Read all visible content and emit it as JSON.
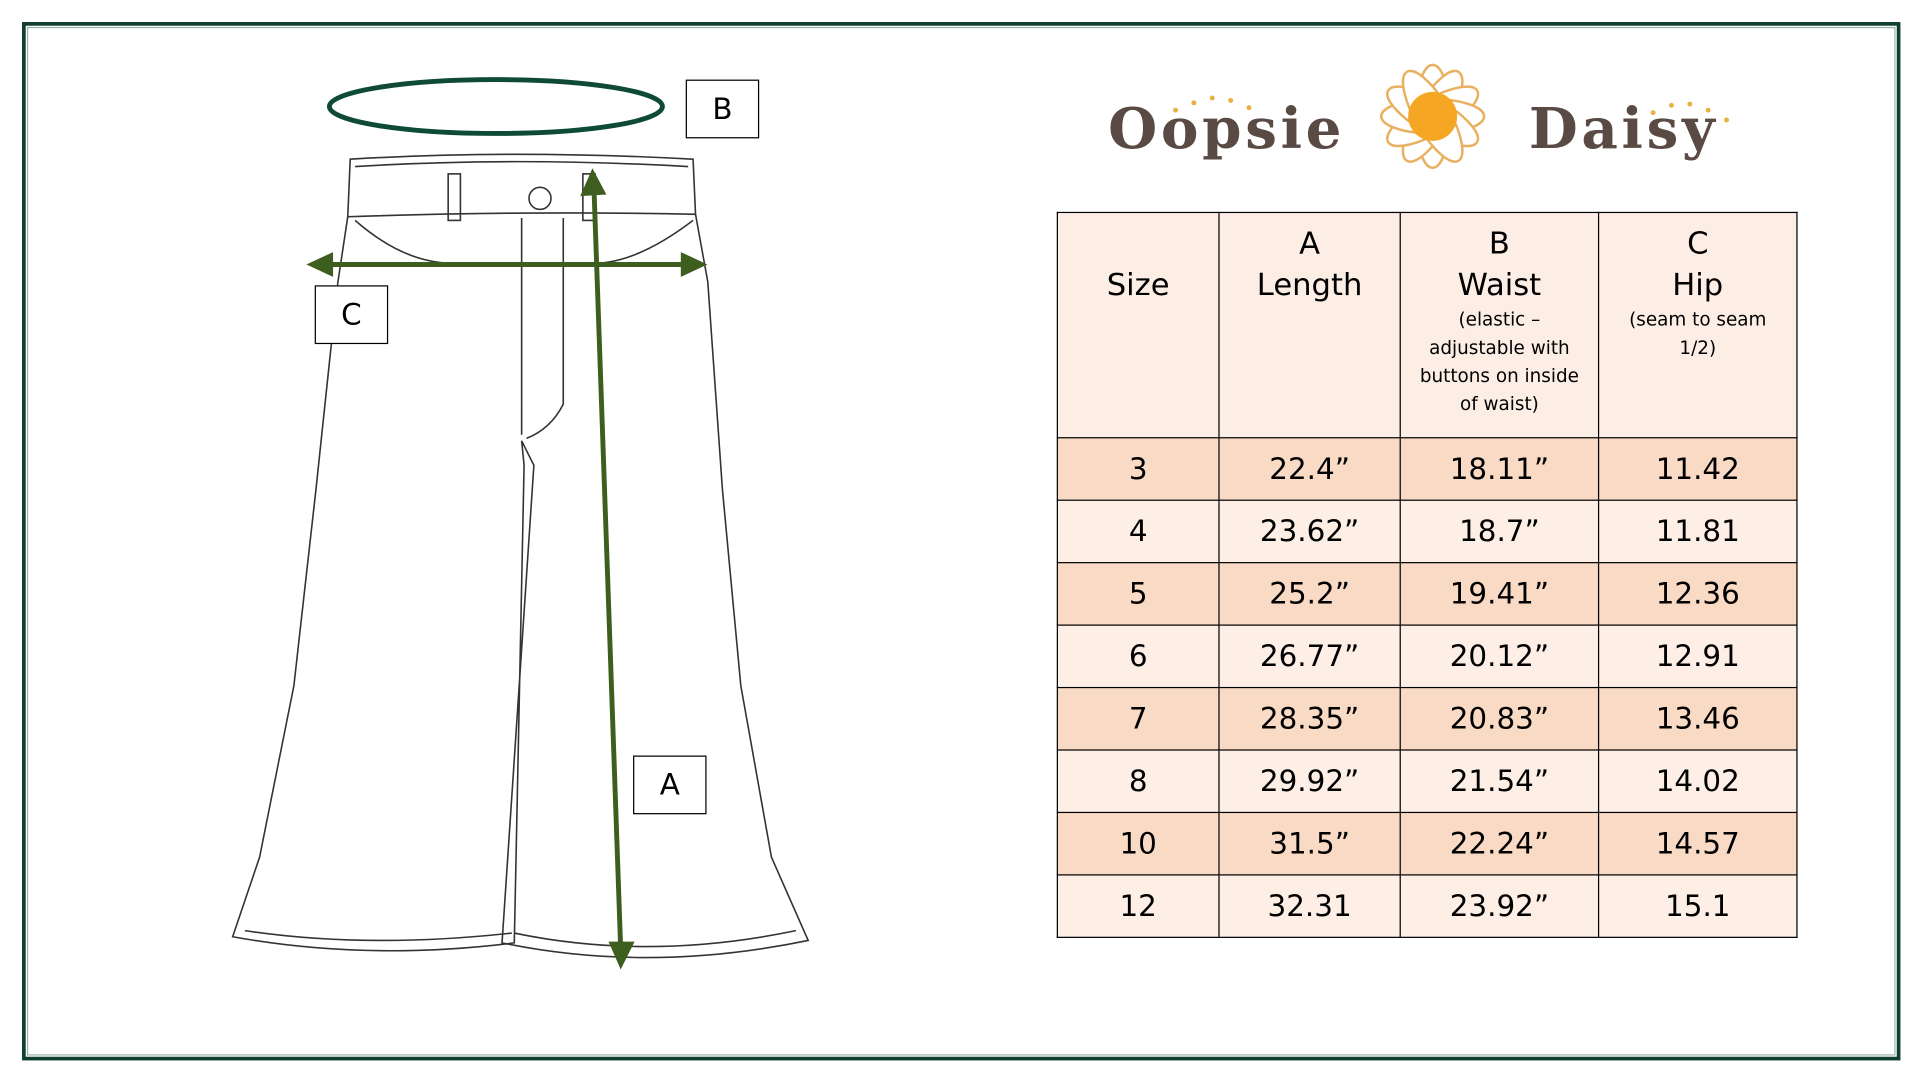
{
  "brand": {
    "left": "Oopsie",
    "right": "Daisy"
  },
  "labels": {
    "a": "A",
    "b": "B",
    "c": "C"
  },
  "colors": {
    "frame": "#0f3d2e",
    "arrow": "#3d5e1e",
    "waist_ring": "#0f4a38",
    "row_dark": "#f9dac5",
    "row_light": "#fdefe6"
  },
  "table": {
    "headers": [
      {
        "letter": "",
        "name": "Size",
        "note": ""
      },
      {
        "letter": "A",
        "name": "Length",
        "note": ""
      },
      {
        "letter": "B",
        "name": "Waist",
        "note": "(elastic – adjustable with buttons on inside of waist)"
      },
      {
        "letter": "C",
        "name": "Hip",
        "note": "(seam to seam 1/2)"
      }
    ],
    "rows": [
      [
        "3",
        "22.4”",
        "18.11”",
        "11.42"
      ],
      [
        "4",
        "23.62”",
        "18.7”",
        "11.81"
      ],
      [
        "5",
        "25.2”",
        "19.41”",
        "12.36"
      ],
      [
        "6",
        "26.77”",
        "20.12”",
        "12.91"
      ],
      [
        "7",
        "28.35”",
        "20.83”",
        "13.46"
      ],
      [
        "8",
        "29.92”",
        "21.54”",
        "14.02"
      ],
      [
        "10",
        "31.5”",
        "22.24”",
        "14.57"
      ],
      [
        "12",
        "32.31",
        "23.92”",
        "15.1"
      ]
    ]
  }
}
